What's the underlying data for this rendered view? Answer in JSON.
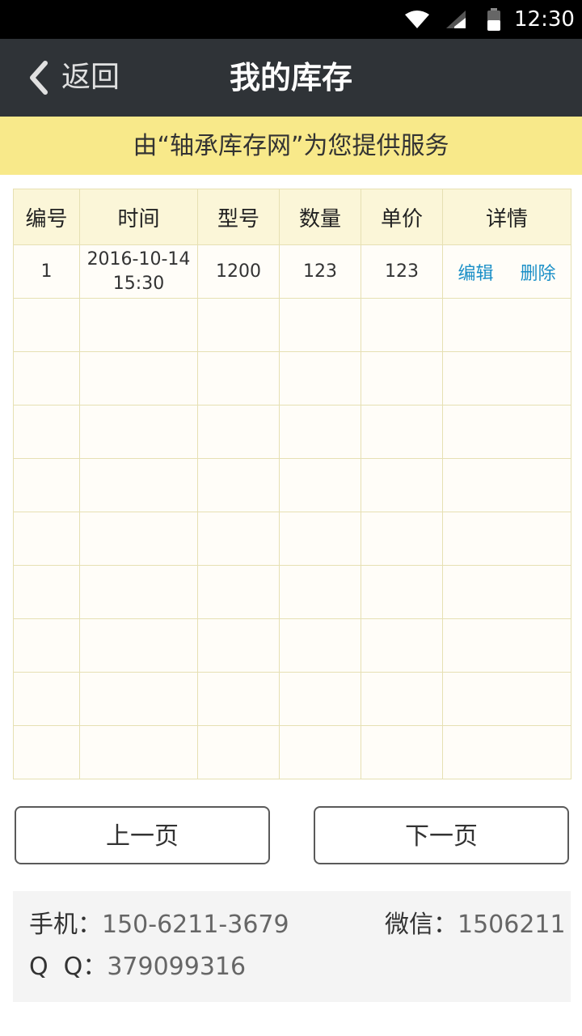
{
  "status_bar": {
    "time": "12:30"
  },
  "header": {
    "back_label": "返回",
    "title": "我的库存"
  },
  "notice": "由“轴承库存网”为您提供服务",
  "table": {
    "columns": [
      "编号",
      "时间",
      "型号",
      "数量",
      "单价",
      "详情"
    ],
    "rows": [
      {
        "id": "1",
        "date": "2016-10-14",
        "time": "15:30",
        "model": "1200",
        "quantity": "123",
        "price": "123",
        "edit_label": "编辑",
        "delete_label": "删除"
      }
    ]
  },
  "pager": {
    "prev_label": "上一页",
    "next_label": "下一页"
  },
  "contact": {
    "phone_label": "手机：",
    "phone_value": "150-6211-3679",
    "wechat_label": "微信：",
    "wechat_value": "1506211",
    "qq_label": "Q  Q：",
    "qq_value": "379099316"
  }
}
